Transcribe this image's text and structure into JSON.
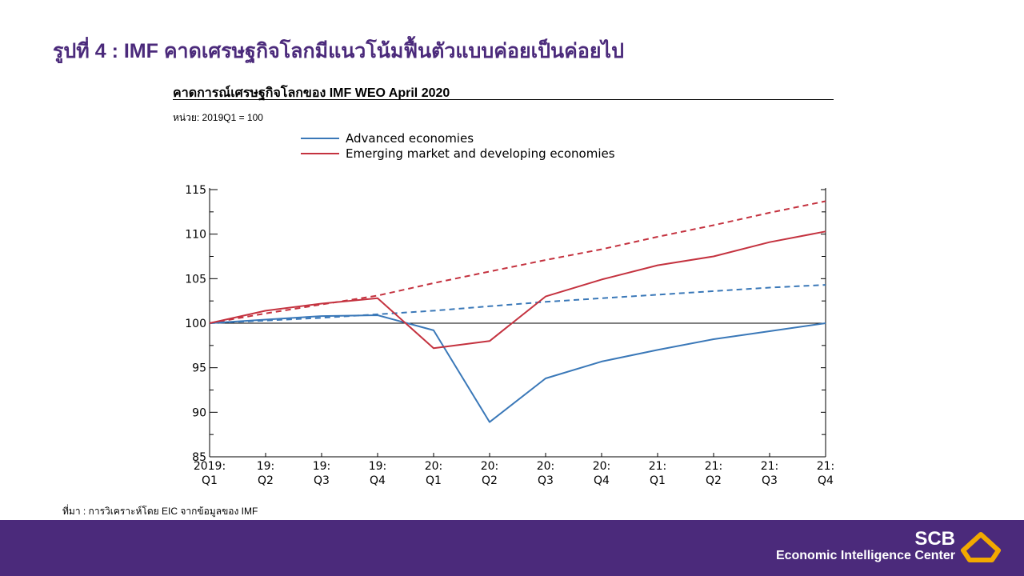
{
  "page": {
    "title": "รูปที่ 4 : IMF คาดเศรษฐกิจโลกมีแนวโน้มฟื้นตัวแบบค่อยเป็นค่อยไป",
    "chart_title": "คาดการณ์เศรษฐกิจโลกของ IMF WEO April 2020",
    "unit_note": "หน่วย: 2019Q1 = 100",
    "source_note": "ที่มา : การวิเคราะห์โดย EIC จากข้อมูลของ IMF"
  },
  "footer": {
    "brand": "SCB",
    "subtitle": "Economic Intelligence Center",
    "background_color": "#4b2a7b",
    "logo_icon": "scb-diamond-logo-icon",
    "logo_color": "#f2a900"
  },
  "chart_data": {
    "type": "line",
    "title": "คาดการณ์เศรษฐกิจโลกของ IMF WEO April 2020",
    "x_labels": [
      [
        "2019:",
        "Q1"
      ],
      [
        "19:",
        "Q2"
      ],
      [
        "19:",
        "Q3"
      ],
      [
        "19:",
        "Q4"
      ],
      [
        "20:",
        "Q1"
      ],
      [
        "20:",
        "Q2"
      ],
      [
        "20:",
        "Q3"
      ],
      [
        "20:",
        "Q4"
      ],
      [
        "21:",
        "Q1"
      ],
      [
        "21:",
        "Q2"
      ],
      [
        "21:",
        "Q3"
      ],
      [
        "21:",
        "Q4"
      ]
    ],
    "ylim": [
      85,
      115
    ],
    "y_ticks": [
      85,
      90,
      95,
      100,
      105,
      110,
      115
    ],
    "reference_line": 100,
    "legend_position": "top",
    "series": [
      {
        "name": "Advanced economies",
        "color": "#3a78b8",
        "style": "solid",
        "values": [
          100,
          100.4,
          100.8,
          100.9,
          99.2,
          88.9,
          93.8,
          95.7,
          97.0,
          98.2,
          99.1,
          100.0
        ]
      },
      {
        "name": "Emerging market and developing economies",
        "color": "#c4323f",
        "style": "solid",
        "values": [
          100,
          101.4,
          102.2,
          102.8,
          97.2,
          98.0,
          103.0,
          104.9,
          106.5,
          107.5,
          109.1,
          110.3
        ]
      },
      {
        "name": "",
        "color": "#3a78b8",
        "style": "dashed",
        "values": [
          100,
          100.3,
          100.6,
          101.0,
          101.4,
          101.9,
          102.4,
          102.8,
          103.2,
          103.6,
          104.0,
          104.3
        ]
      },
      {
        "name": "",
        "color": "#c4323f",
        "style": "dashed",
        "values": [
          100,
          101.1,
          102.1,
          103.1,
          104.5,
          105.8,
          107.1,
          108.3,
          109.7,
          111.0,
          112.4,
          113.7
        ]
      }
    ]
  }
}
